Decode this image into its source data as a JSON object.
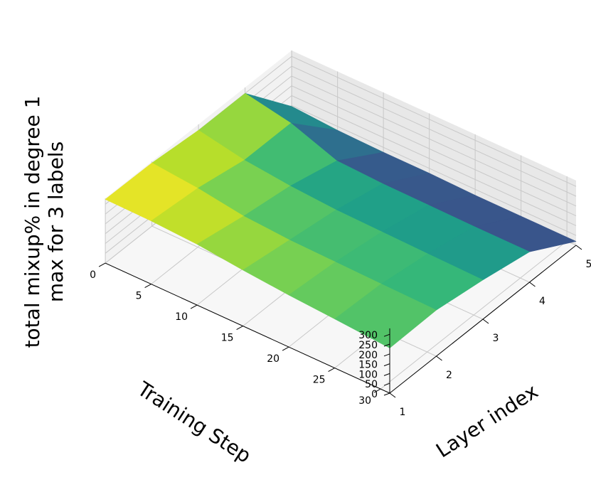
{
  "chart_data": {
    "type": "surface3d",
    "colormap": "viridis",
    "colors": [
      "#440154",
      "#482878",
      "#3e4989",
      "#31688e",
      "#26828e",
      "#1f9e89",
      "#35b779",
      "#6ece58",
      "#b5de2b",
      "#fde725"
    ],
    "grid": true,
    "zlabel_lines": [
      "total mixup% in degree 1",
      "max for 3 labels"
    ],
    "xlabel": "Layer index",
    "ylabel": "Training Step",
    "x_ticks": [
      "1",
      "2",
      "3",
      "4",
      "5"
    ],
    "y_ticks": [
      "0",
      "5",
      "10",
      "15",
      "20",
      "25",
      "30"
    ],
    "z_ticks": [
      "0",
      "50",
      "100",
      "150",
      "200",
      "250",
      "300"
    ],
    "xlim": [
      1,
      5
    ],
    "ylim": [
      0,
      31
    ],
    "zlim": [
      0,
      330
    ],
    "layers": [
      1,
      2,
      3,
      4,
      5
    ],
    "steps": [
      0,
      5,
      10,
      15,
      20,
      25,
      31
    ],
    "z": [
      [
        325,
        322,
        310,
        285,
        265,
        250,
        230
      ],
      [
        322,
        300,
        265,
        250,
        245,
        240,
        235
      ],
      [
        300,
        255,
        230,
        215,
        210,
        205,
        200
      ],
      [
        300,
        255,
        170,
        160,
        158,
        155,
        155
      ],
      [
        45,
        30,
        25,
        25,
        20,
        20,
        20
      ]
    ]
  }
}
